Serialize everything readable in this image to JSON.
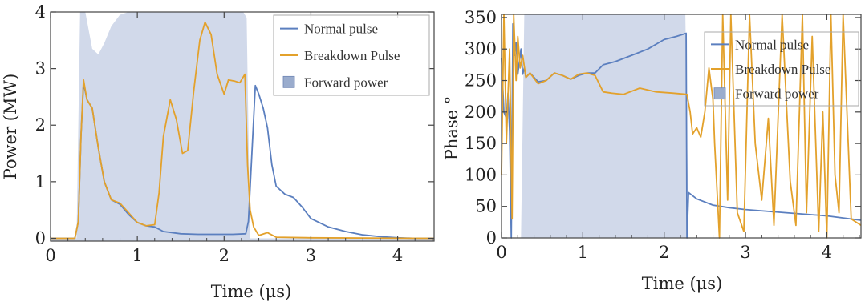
{
  "chart_data": [
    {
      "type": "line",
      "title": "",
      "xlabel": "Time (μs)",
      "ylabel": "Power (MW)",
      "xlim": [
        0,
        4.42
      ],
      "ylim": [
        -0.05,
        4.0
      ],
      "xticks": [
        0,
        1,
        2,
        3,
        4
      ],
      "yticks": [
        0,
        1,
        2,
        3,
        4
      ],
      "legend": {
        "position": "top-right",
        "entries": [
          "Normal pulse",
          "Breakdown Pulse",
          "Forward power"
        ]
      },
      "colors": {
        "normal": "#5b7fbf",
        "breakdown": "#e3a12b",
        "forward": "#c9d2e6"
      },
      "series": [
        {
          "name": "Normal pulse",
          "x": [
            0,
            0.28,
            0.32,
            0.35,
            0.38,
            0.42,
            0.48,
            0.55,
            0.62,
            0.7,
            0.8,
            0.9,
            1.0,
            1.1,
            1.2,
            1.3,
            1.5,
            1.7,
            1.9,
            2.1,
            2.25,
            2.28,
            2.32,
            2.36,
            2.4,
            2.45,
            2.5,
            2.55,
            2.6,
            2.7,
            2.8,
            2.9,
            3.0,
            3.2,
            3.4,
            3.6,
            3.8,
            4.0,
            4.2,
            4.42
          ],
          "values": [
            0,
            0,
            0.3,
            1.8,
            2.75,
            2.45,
            2.3,
            1.6,
            1.0,
            0.68,
            0.6,
            0.42,
            0.28,
            0.22,
            0.2,
            0.12,
            0.08,
            0.07,
            0.07,
            0.07,
            0.08,
            0.3,
            1.5,
            2.7,
            2.55,
            2.3,
            1.95,
            1.3,
            0.92,
            0.78,
            0.72,
            0.55,
            0.35,
            0.2,
            0.12,
            0.06,
            0.03,
            0.01,
            0.0,
            0.0
          ]
        },
        {
          "name": "Breakdown Pulse",
          "x": [
            0,
            0.28,
            0.32,
            0.35,
            0.38,
            0.42,
            0.48,
            0.55,
            0.62,
            0.7,
            0.8,
            0.9,
            1.0,
            1.1,
            1.2,
            1.25,
            1.3,
            1.38,
            1.45,
            1.52,
            1.58,
            1.65,
            1.72,
            1.78,
            1.85,
            1.92,
            2.0,
            2.05,
            2.12,
            2.18,
            2.24,
            2.27,
            2.3,
            2.34,
            2.4,
            2.5,
            2.6,
            3.0,
            4.42
          ],
          "values": [
            0,
            0,
            0.3,
            1.8,
            2.8,
            2.45,
            2.3,
            1.6,
            1.0,
            0.68,
            0.62,
            0.45,
            0.28,
            0.22,
            0.24,
            0.8,
            1.8,
            2.45,
            2.1,
            1.5,
            1.55,
            2.6,
            3.5,
            3.82,
            3.6,
            2.9,
            2.55,
            2.8,
            2.78,
            2.75,
            2.9,
            1.3,
            0.5,
            0.2,
            0.05,
            0.1,
            0.02,
            0.01,
            0.0
          ]
        }
      ],
      "forward_power": {
        "x": [
          0,
          0.3,
          0.34,
          0.4,
          0.48,
          0.55,
          0.62,
          0.7,
          0.8,
          0.9,
          1.2,
          2.22,
          2.26,
          2.3,
          4.42
        ],
        "values": [
          0,
          0,
          4.0,
          4.0,
          3.35,
          3.25,
          3.45,
          3.75,
          3.95,
          4.0,
          4.0,
          4.0,
          3.9,
          0,
          0
        ]
      }
    },
    {
      "type": "line",
      "title": "",
      "xlabel": "Time (μs)",
      "ylabel": "Phase °",
      "xlim": [
        0,
        4.42
      ],
      "ylim": [
        0,
        355
      ],
      "xticks": [
        0,
        1,
        2,
        3,
        4
      ],
      "yticks": [
        0,
        50,
        100,
        150,
        200,
        250,
        300,
        350
      ],
      "legend": {
        "position": "top-right",
        "entries": [
          "Normal pulse",
          "Breakdown Pulse",
          "Forward power"
        ]
      },
      "colors": {
        "normal": "#5b7fbf",
        "breakdown": "#e3a12b",
        "forward": "#c9d2e6"
      },
      "series": [
        {
          "name": "Normal pulse",
          "x": [
            0,
            0.03,
            0.06,
            0.08,
            0.1,
            0.12,
            0.14,
            0.16,
            0.18,
            0.2,
            0.22,
            0.24,
            0.26,
            0.28,
            0.3,
            0.35,
            0.45,
            0.55,
            0.65,
            0.75,
            0.85,
            0.95,
            1.05,
            1.15,
            1.25,
            1.4,
            1.6,
            1.8,
            2.0,
            2.15,
            2.27,
            2.28,
            2.3,
            2.4,
            2.6,
            2.8,
            3.0,
            3.5,
            4.0,
            4.42
          ],
          "values": [
            285,
            200,
            190,
            230,
            170,
            0,
            340,
            290,
            310,
            260,
            280,
            300,
            260,
            270,
            255,
            262,
            248,
            250,
            262,
            258,
            252,
            258,
            262,
            262,
            275,
            280,
            290,
            300,
            315,
            320,
            325,
            0,
            72,
            62,
            52,
            48,
            45,
            40,
            35,
            28
          ]
        },
        {
          "name": "Breakdown Pulse",
          "x": [
            0,
            0.03,
            0.06,
            0.1,
            0.13,
            0.15,
            0.18,
            0.2,
            0.23,
            0.26,
            0.3,
            0.35,
            0.45,
            0.55,
            0.65,
            0.75,
            0.85,
            0.95,
            1.05,
            1.15,
            1.25,
            1.35,
            1.5,
            1.7,
            1.9,
            2.1,
            2.28,
            2.32,
            2.35,
            2.4,
            2.45,
            2.5,
            2.55,
            2.6,
            2.62,
            2.68,
            2.72,
            2.78,
            2.82,
            2.9,
            2.98,
            3.05,
            3.12,
            3.2,
            3.28,
            3.35,
            3.45,
            3.55,
            3.62,
            3.7,
            3.75,
            3.82,
            3.9,
            3.95,
            4.0,
            4.05,
            4.1,
            4.15,
            4.2,
            4.3,
            4.42
          ],
          "values": [
            100,
            355,
            150,
            300,
            30,
            355,
            250,
            320,
            270,
            290,
            255,
            262,
            245,
            250,
            262,
            258,
            252,
            260,
            262,
            258,
            232,
            230,
            228,
            238,
            232,
            230,
            228,
            200,
            165,
            175,
            160,
            200,
            270,
            220,
            150,
            0,
            355,
            60,
            355,
            40,
            10,
            355,
            150,
            60,
            190,
            20,
            355,
            90,
            20,
            355,
            40,
            320,
            10,
            200,
            0,
            355,
            100,
            40,
            355,
            30,
            20
          ]
        }
      ],
      "forward_power": {
        "x": [
          0,
          0.24,
          0.28,
          2.26,
          2.3,
          4.42
        ],
        "values": [
          0,
          0,
          355,
          355,
          0,
          0
        ]
      }
    }
  ]
}
